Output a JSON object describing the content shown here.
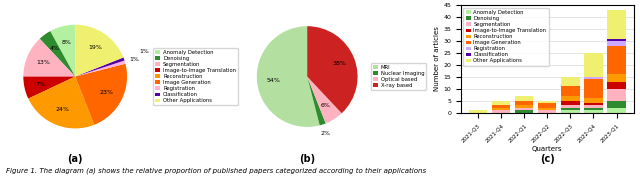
{
  "caption": "Figure 1. The diagram (a) shows the relative proportion of published papers categorized according to their applications",
  "chart_data": [
    {
      "type": "pie",
      "title": "(a)",
      "categories": [
        "Anomaly Detection",
        "Denoising",
        "Segmentation",
        "Image-to-Image Translation",
        "Reconstruction",
        "Image Generation",
        "Registration",
        "Classification",
        "Other Applications"
      ],
      "values": [
        8,
        4,
        13,
        7,
        24,
        23,
        1,
        1,
        19
      ],
      "value_labels": [
        "8%",
        "4%",
        "13%",
        "7%",
        "24%",
        "23%",
        "1%",
        "1%",
        "19%"
      ],
      "colors": [
        "#b3f0a0",
        "#2e8b2e",
        "#ffb3c1",
        "#cc0000",
        "#ff9900",
        "#ff6600",
        "#ffb3d9",
        "#5500aa",
        "#f0f070"
      ],
      "data_labels": true,
      "legend": "right"
    },
    {
      "type": "pie",
      "title": "(b)",
      "categories": [
        "MRI",
        "Nuclear Imaging",
        "Optical based",
        "X-ray based"
      ],
      "values": [
        54,
        2,
        6,
        38
      ],
      "value_labels": [
        "54%",
        "2%",
        "6%",
        "38%"
      ],
      "colors": [
        "#b3e0a0",
        "#2e8b2e",
        "#ffb3c1",
        "#cc2222"
      ],
      "data_labels": true,
      "legend": "right"
    },
    {
      "type": "bar",
      "title": "(c)",
      "stacked": true,
      "categories": [
        "2021-Q3",
        "2021-Q4",
        "2022-Q1",
        "2022-Q2",
        "2022-Q3",
        "2022-Q4",
        "2023-Q1"
      ],
      "series": [
        {
          "name": "Anomaly Detection",
          "color": "#b3f0a0",
          "values": [
            0,
            0,
            0,
            0,
            1,
            1,
            2
          ]
        },
        {
          "name": "Denoising",
          "color": "#2e8b2e",
          "values": [
            0,
            0,
            1,
            0,
            1,
            1,
            3
          ]
        },
        {
          "name": "Segmentation",
          "color": "#ffb3c1",
          "values": [
            0,
            1,
            1,
            1,
            1,
            1,
            5
          ]
        },
        {
          "name": "Image-to-Image Translation",
          "color": "#cc0000",
          "values": [
            0,
            0,
            0,
            0,
            2,
            1,
            3
          ]
        },
        {
          "name": "Reconstruction",
          "color": "#ff9900",
          "values": [
            0,
            1,
            1,
            1,
            2,
            2,
            3
          ]
        },
        {
          "name": "Image Generation",
          "color": "#ff6600",
          "values": [
            0,
            1,
            2,
            2,
            4,
            8,
            12
          ]
        },
        {
          "name": "Registration",
          "color": "#ccaaff",
          "values": [
            0,
            0,
            0,
            0,
            0,
            1,
            2
          ]
        },
        {
          "name": "Classification",
          "color": "#5500aa",
          "values": [
            0,
            0,
            0,
            0,
            0,
            0,
            1
          ]
        },
        {
          "name": "Other Applications",
          "color": "#f0f070",
          "values": [
            1,
            2,
            2,
            1,
            4,
            10,
            12
          ]
        }
      ],
      "xlabel": "Quarters",
      "ylabel": "Number of articles",
      "ylim": [
        0,
        45
      ],
      "yticks": [
        0,
        5,
        10,
        15,
        20,
        25,
        30,
        35,
        40,
        45
      ],
      "grid": "y",
      "legend": "upper left"
    }
  ]
}
